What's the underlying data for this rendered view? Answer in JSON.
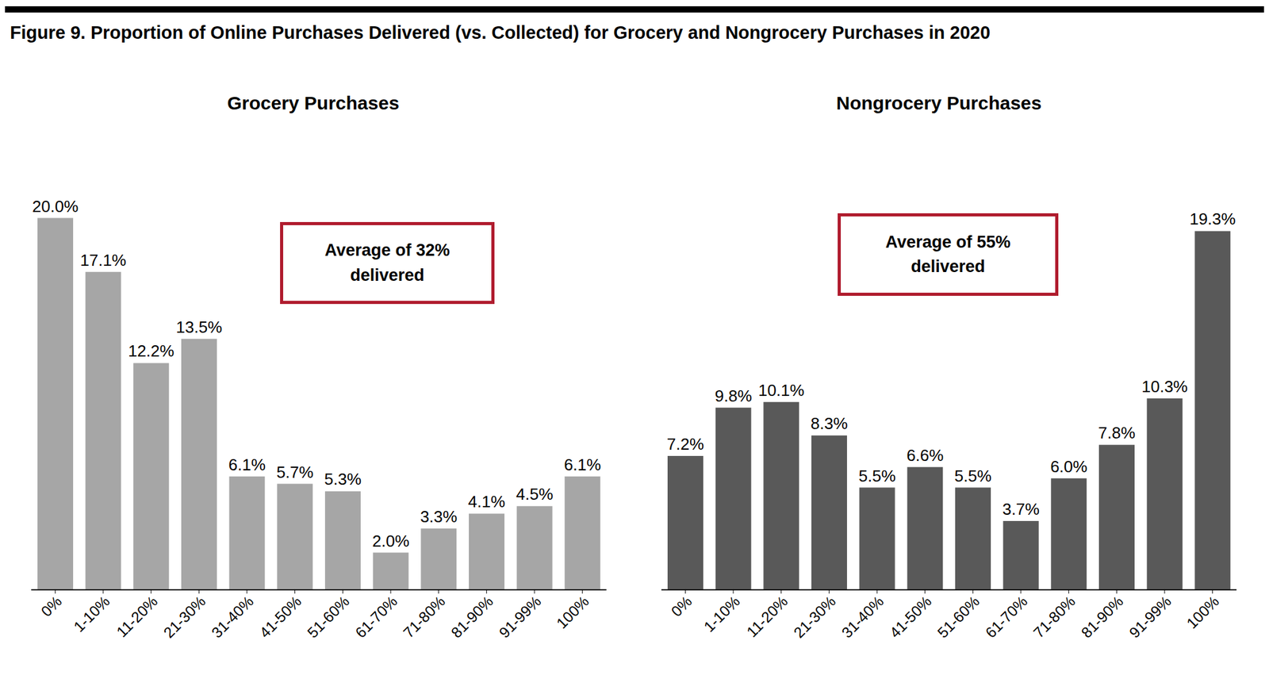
{
  "title": "Figure 9. Proportion of Online Purchases Delivered (vs. Collected) for Grocery and Nongrocery Purchases in 2020",
  "chart_data": [
    {
      "type": "bar",
      "title": "Grocery Purchases",
      "categories": [
        "0%",
        "1-10%",
        "11-20%",
        "21-30%",
        "31-40%",
        "41-50%",
        "51-60%",
        "61-70%",
        "71-80%",
        "81-90%",
        "91-99%",
        "100%"
      ],
      "values": [
        20.0,
        17.1,
        12.2,
        13.5,
        6.1,
        5.7,
        5.3,
        2.0,
        3.3,
        4.1,
        4.5,
        6.1
      ],
      "value_labels": [
        "20.0%",
        "17.1%",
        "12.2%",
        "13.5%",
        "6.1%",
        "5.7%",
        "5.3%",
        "2.0%",
        "3.3%",
        "4.1%",
        "4.5%",
        "6.1%"
      ],
      "color": "#a6a6a6",
      "ylim": [
        0,
        25
      ],
      "data_labels": true,
      "tick_labels": "x",
      "grid": false,
      "annotations": [
        {
          "text": "Average of 32% delivered"
        }
      ]
    },
    {
      "type": "bar",
      "title": "Nongrocery Purchases",
      "categories": [
        "0%",
        "1-10%",
        "11-20%",
        "21-30%",
        "31-40%",
        "41-50%",
        "51-60%",
        "61-70%",
        "71-80%",
        "81-90%",
        "91-99%",
        "100%"
      ],
      "values": [
        7.2,
        9.8,
        10.1,
        8.3,
        5.5,
        6.6,
        5.5,
        3.7,
        6.0,
        7.8,
        10.3,
        19.3
      ],
      "value_labels": [
        "7.2%",
        "9.8%",
        "10.1%",
        "8.3%",
        "5.5%",
        "6.6%",
        "5.5%",
        "3.7%",
        "6.0%",
        "7.8%",
        "10.3%",
        "19.3%"
      ],
      "color": "#595959",
      "ylim": [
        0,
        25
      ],
      "data_labels": true,
      "tick_labels": "x",
      "grid": false,
      "annotations": [
        {
          "text": "Average of 55% delivered"
        }
      ]
    }
  ]
}
